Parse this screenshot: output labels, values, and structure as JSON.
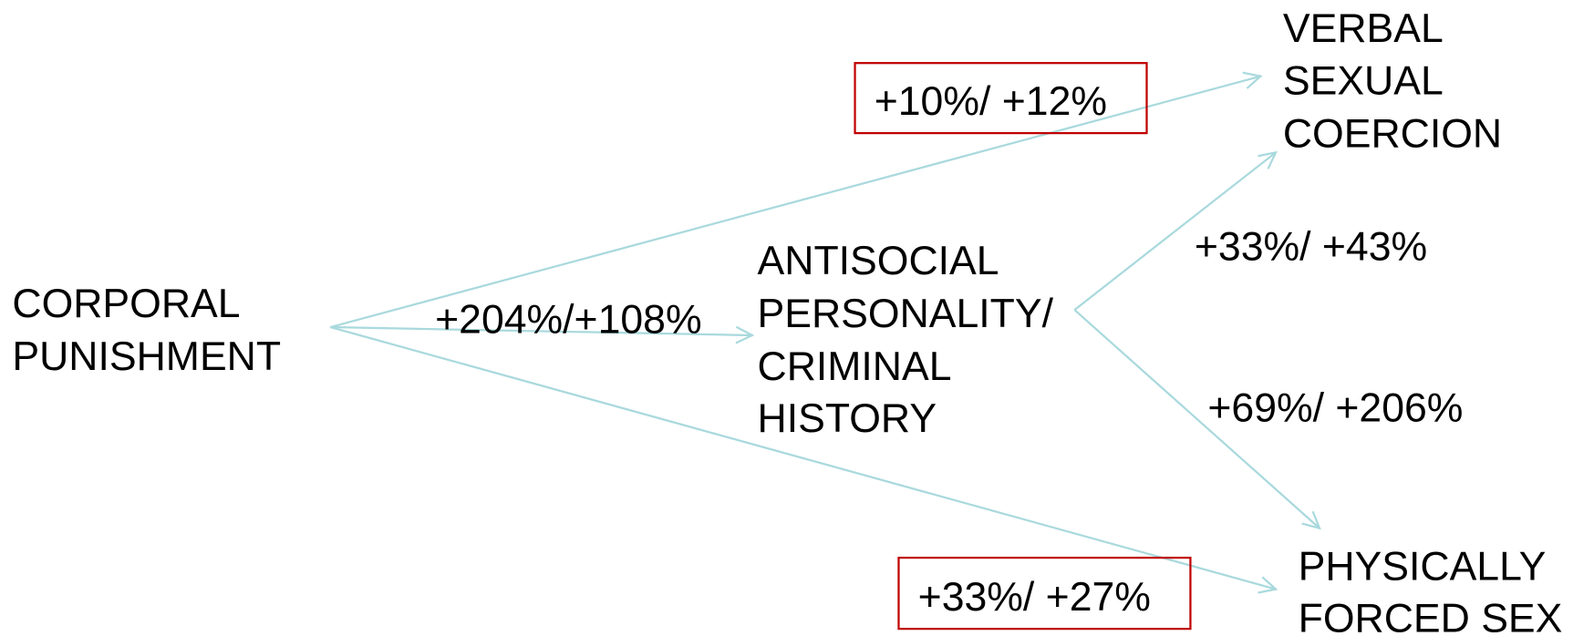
{
  "nodes": [
    {
      "lines": [
        "CORPORAL",
        "PUNISHMENT"
      ]
    },
    {
      "lines": [
        "ANTISOCIAL",
        "PERSONALITY/",
        "CRIMINAL",
        "HISTORY"
      ]
    },
    {
      "lines": [
        "VERBAL",
        "SEXUAL",
        "COERCION"
      ]
    },
    {
      "lines": [
        "PHYSICALLY",
        "FORCED SEX"
      ]
    }
  ],
  "edges": [
    {
      "label": "+10%/ +12%"
    },
    {
      "label": "+204%/+108%"
    },
    {
      "label": "+33%/ +27%"
    },
    {
      "label": "+33%/ +43%"
    },
    {
      "label": "+69%/ +206%"
    }
  ]
}
